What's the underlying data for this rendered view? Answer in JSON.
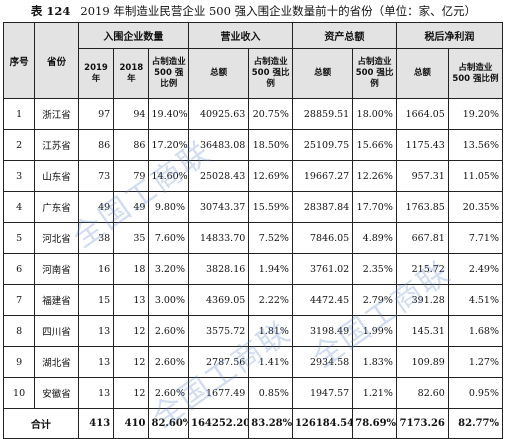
{
  "caption": {
    "table_number": "表 124",
    "title": "2019 年制造业民营企业 500 强入围企业数量前十的省份（单位：家、亿元）"
  },
  "header": {
    "rank": "序号",
    "province": "省份",
    "group_count": "入围企业数量",
    "group_revenue": "营业收入",
    "group_assets": "资产总额",
    "group_profit": "税后净利润",
    "year_2019": "2019 年",
    "year_2018": "2018 年",
    "share": "占制造业 500 强比例",
    "total": "总额"
  },
  "rows": [
    {
      "rank": "1",
      "province": "浙江省",
      "n2019": "97",
      "n2018": "94",
      "count_share": "19.40%",
      "revenue": "40925.63",
      "revenue_share": "20.75%",
      "assets": "28859.51",
      "assets_share": "18.00%",
      "profit": "1664.05",
      "profit_share": "19.20%"
    },
    {
      "rank": "2",
      "province": "江苏省",
      "n2019": "86",
      "n2018": "86",
      "count_share": "17.20%",
      "revenue": "36483.08",
      "revenue_share": "18.50%",
      "assets": "25109.75",
      "assets_share": "15.66%",
      "profit": "1175.43",
      "profit_share": "13.56%"
    },
    {
      "rank": "3",
      "province": "山东省",
      "n2019": "73",
      "n2018": "79",
      "count_share": "14.60%",
      "revenue": "25028.43",
      "revenue_share": "12.69%",
      "assets": "19667.27",
      "assets_share": "12.26%",
      "profit": "957.31",
      "profit_share": "11.05%"
    },
    {
      "rank": "4",
      "province": "广东省",
      "n2019": "49",
      "n2018": "49",
      "count_share": "9.80%",
      "revenue": "30743.37",
      "revenue_share": "15.59%",
      "assets": "28387.84",
      "assets_share": "17.70%",
      "profit": "1763.85",
      "profit_share": "20.35%"
    },
    {
      "rank": "5",
      "province": "河北省",
      "n2019": "38",
      "n2018": "35",
      "count_share": "7.60%",
      "revenue": "14833.70",
      "revenue_share": "7.52%",
      "assets": "7846.05",
      "assets_share": "4.89%",
      "profit": "667.81",
      "profit_share": "7.71%"
    },
    {
      "rank": "6",
      "province": "河南省",
      "n2019": "16",
      "n2018": "18",
      "count_share": "3.20%",
      "revenue": "3828.16",
      "revenue_share": "1.94%",
      "assets": "3761.02",
      "assets_share": "2.35%",
      "profit": "215.72",
      "profit_share": "2.49%"
    },
    {
      "rank": "7",
      "province": "福建省",
      "n2019": "15",
      "n2018": "13",
      "count_share": "3.00%",
      "revenue": "4369.05",
      "revenue_share": "2.22%",
      "assets": "4472.45",
      "assets_share": "2.79%",
      "profit": "391.28",
      "profit_share": "4.51%"
    },
    {
      "rank": "8",
      "province": "四川省",
      "n2019": "13",
      "n2018": "12",
      "count_share": "2.60%",
      "revenue": "3575.72",
      "revenue_share": "1.81%",
      "assets": "3198.49",
      "assets_share": "1.99%",
      "profit": "145.31",
      "profit_share": "1.68%"
    },
    {
      "rank": "9",
      "province": "湖北省",
      "n2019": "13",
      "n2018": "12",
      "count_share": "2.60%",
      "revenue": "2787.56",
      "revenue_share": "1.41%",
      "assets": "2934.58",
      "assets_share": "1.83%",
      "profit": "109.89",
      "profit_share": "1.27%"
    },
    {
      "rank": "10",
      "province": "安徽省",
      "n2019": "13",
      "n2018": "12",
      "count_share": "2.60%",
      "revenue": "1677.49",
      "revenue_share": "0.85%",
      "assets": "1947.57",
      "assets_share": "1.21%",
      "profit": "82.60",
      "profit_share": "0.95%"
    }
  ],
  "total": {
    "label": "合计",
    "n2019": "413",
    "n2018": "410",
    "count_share": "82.60%",
    "revenue": "164252.20",
    "revenue_share": "83.28%",
    "assets": "126184.54",
    "assets_share": "78.69%",
    "profit": "7173.26",
    "profit_share": "82.77%"
  },
  "watermark": {
    "text": "全国工商联",
    "color": "#5a82c8"
  }
}
